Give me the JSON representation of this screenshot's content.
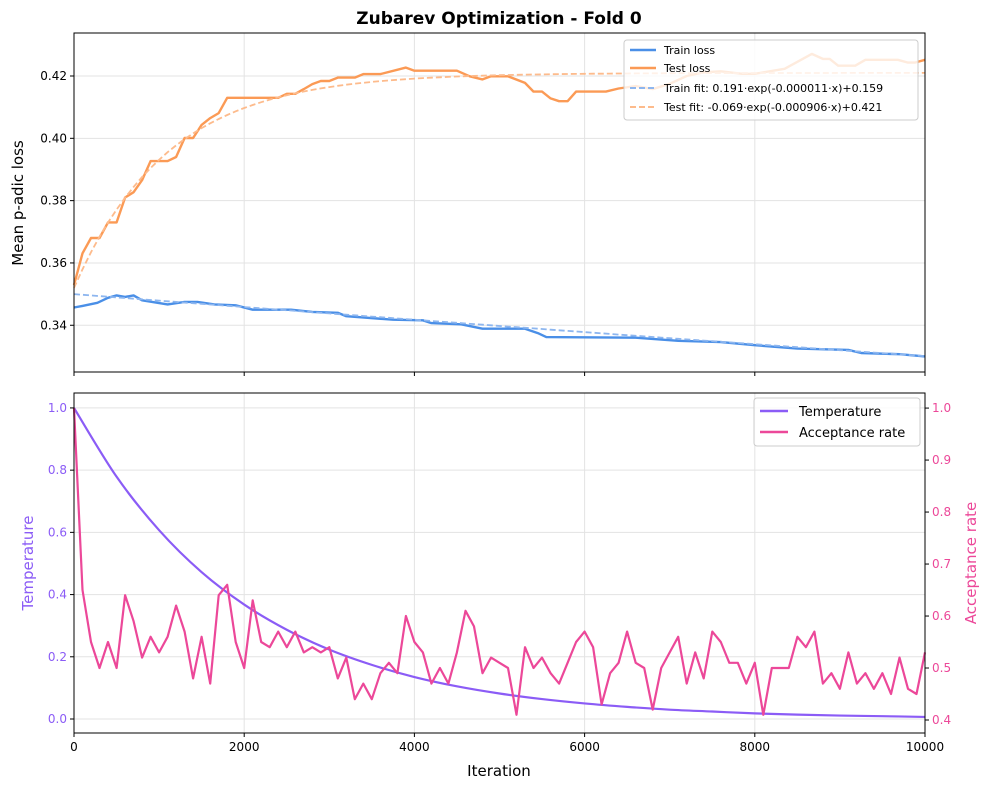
{
  "chart_data": [
    {
      "type": "line",
      "title": "Zubarev Optimization - Fold 0",
      "xlabel": "",
      "ylabel": "Mean p-adic loss",
      "xlim": [
        0,
        10000
      ],
      "ylim": [
        0.325,
        0.4338
      ],
      "xticks": [
        0,
        2000,
        4000,
        6000,
        8000,
        10000
      ],
      "yticks": [
        0.34,
        0.36,
        0.38,
        0.4,
        0.42
      ],
      "ytick_labels": [
        "0.34",
        "0.36",
        "0.38",
        "0.40",
        "0.42"
      ],
      "grid": true,
      "legend_position": "top-right",
      "series": [
        {
          "name": "Train loss",
          "color": "#4a8fe7",
          "style": "solid",
          "points": [
            [
              0,
              0.3457
            ],
            [
              100,
              0.3462
            ],
            [
              275,
              0.3472
            ],
            [
              400,
              0.3488
            ],
            [
              500,
              0.3496
            ],
            [
              600,
              0.3491
            ],
            [
              700,
              0.3496
            ],
            [
              800,
              0.348
            ],
            [
              1100,
              0.3467
            ],
            [
              1300,
              0.3475
            ],
            [
              1450,
              0.3475
            ],
            [
              1650,
              0.3467
            ],
            [
              1900,
              0.3464
            ],
            [
              2100,
              0.345
            ],
            [
              2550,
              0.345
            ],
            [
              2800,
              0.3443
            ],
            [
              3100,
              0.344
            ],
            [
              3200,
              0.3429
            ],
            [
              3750,
              0.3418
            ],
            [
              4100,
              0.3416
            ],
            [
              4200,
              0.3407
            ],
            [
              4550,
              0.3403
            ],
            [
              4800,
              0.3389
            ],
            [
              5300,
              0.3389
            ],
            [
              5450,
              0.3375
            ],
            [
              5550,
              0.3362
            ],
            [
              6600,
              0.336
            ],
            [
              7100,
              0.335
            ],
            [
              7600,
              0.3346
            ],
            [
              8000,
              0.3336
            ],
            [
              8500,
              0.3325
            ],
            [
              9100,
              0.3321
            ],
            [
              9250,
              0.3311
            ],
            [
              9700,
              0.3307
            ],
            [
              10000,
              0.33
            ]
          ]
        },
        {
          "name": "Test loss",
          "color": "#fb9a55",
          "style": "solid",
          "points": [
            [
              0,
              0.3529
            ],
            [
              100,
              0.3631
            ],
            [
              200,
              0.368
            ],
            [
              300,
              0.368
            ],
            [
              400,
              0.373
            ],
            [
              500,
              0.373
            ],
            [
              600,
              0.381
            ],
            [
              700,
              0.3827
            ],
            [
              800,
              0.3866
            ],
            [
              900,
              0.3927
            ],
            [
              1100,
              0.3927
            ],
            [
              1200,
              0.394
            ],
            [
              1300,
              0.4001
            ],
            [
              1400,
              0.4001
            ],
            [
              1500,
              0.4043
            ],
            [
              1600,
              0.4065
            ],
            [
              1700,
              0.4081
            ],
            [
              1800,
              0.413
            ],
            [
              2400,
              0.413
            ],
            [
              2500,
              0.4143
            ],
            [
              2600,
              0.4143
            ],
            [
              2700,
              0.4158
            ],
            [
              2800,
              0.4174
            ],
            [
              2900,
              0.4184
            ],
            [
              3000,
              0.4184
            ],
            [
              3100,
              0.4195
            ],
            [
              3300,
              0.4195
            ],
            [
              3400,
              0.4206
            ],
            [
              3600,
              0.4206
            ],
            [
              3900,
              0.4227
            ],
            [
              4000,
              0.4217
            ],
            [
              4500,
              0.4217
            ],
            [
              4650,
              0.4199
            ],
            [
              4800,
              0.4189
            ],
            [
              4900,
              0.4199
            ],
            [
              5100,
              0.4199
            ],
            [
              5300,
              0.4178
            ],
            [
              5400,
              0.415
            ],
            [
              5500,
              0.415
            ],
            [
              5600,
              0.4128
            ],
            [
              5700,
              0.4119
            ],
            [
              5800,
              0.4119
            ],
            [
              5900,
              0.415
            ],
            [
              6250,
              0.415
            ],
            [
              6400,
              0.416
            ],
            [
              6600,
              0.4168
            ],
            [
              6800,
              0.4158
            ],
            [
              7000,
              0.4175
            ],
            [
              7200,
              0.42
            ],
            [
              7400,
              0.4212
            ],
            [
              7600,
              0.4215
            ],
            [
              7850,
              0.4207
            ],
            [
              8000,
              0.4207
            ],
            [
              8350,
              0.4223
            ],
            [
              8670,
              0.4271
            ],
            [
              8800,
              0.4255
            ],
            [
              8880,
              0.4255
            ],
            [
              8980,
              0.4233
            ],
            [
              9180,
              0.4233
            ],
            [
              9300,
              0.4252
            ],
            [
              9680,
              0.4252
            ],
            [
              9800,
              0.4243
            ],
            [
              9880,
              0.4243
            ],
            [
              10000,
              0.4252
            ]
          ]
        },
        {
          "name": "Train fit: 0.191·exp(-0.000011·x)+0.159",
          "color": "#8db6ef",
          "style": "dashed",
          "fit": {
            "a": 0.191,
            "b": -1.1e-05,
            "c": 0.159
          }
        },
        {
          "name": "Test fit: -0.069·exp(-0.000906·x)+0.421",
          "color": "#fdbb8c",
          "style": "dashed",
          "fit": {
            "a": -0.069,
            "b": -0.000906,
            "c": 0.421
          }
        }
      ]
    },
    {
      "type": "line",
      "xlabel": "Iteration",
      "ylabel_left": "Temperature",
      "ylabel_right": "Acceptance rate",
      "xlim": [
        0,
        10000
      ],
      "ylim_left": [
        -0.045,
        1.048
      ],
      "ylim_right": [
        0.375,
        1.029
      ],
      "xticks": [
        0,
        2000,
        4000,
        6000,
        8000,
        10000
      ],
      "xtick_labels": [
        "0",
        "2000",
        "4000",
        "6000",
        "8000",
        "10000"
      ],
      "yticks_left": [
        0.0,
        0.2,
        0.4,
        0.6,
        0.8,
        1.0
      ],
      "ytick_labels_left": [
        "0.0",
        "0.2",
        "0.4",
        "0.6",
        "0.8",
        "1.0"
      ],
      "yticks_right": [
        0.4,
        0.5,
        0.6,
        0.7,
        0.8,
        0.9,
        1.0
      ],
      "ytick_labels_right": [
        "0.4",
        "0.5",
        "0.6",
        "0.7",
        "0.8",
        "0.9",
        "1.0"
      ],
      "grid": true,
      "legend_position": "top-right",
      "series": [
        {
          "name": "Temperature",
          "color": "#8b5cf6",
          "axis": "left",
          "x": [
            0,
            500,
            1000,
            1500,
            2000,
            2500,
            3000,
            3500,
            4000,
            4500,
            5000,
            5500,
            6000,
            6500,
            7000,
            7500,
            8000,
            8500,
            9000,
            9500,
            10000
          ],
          "values": [
            1.0,
            0.779,
            0.607,
            0.472,
            0.368,
            0.287,
            0.223,
            0.174,
            0.135,
            0.105,
            0.082,
            0.064,
            0.05,
            0.039,
            0.03,
            0.024,
            0.018,
            0.014,
            0.011,
            0.009,
            0.0067
          ]
        },
        {
          "name": "Acceptance rate",
          "color": "#ec4899",
          "axis": "right",
          "x_step": 100,
          "values": [
            1.0,
            0.65,
            0.55,
            0.5,
            0.55,
            0.5,
            0.64,
            0.59,
            0.52,
            0.56,
            0.53,
            0.56,
            0.62,
            0.57,
            0.48,
            0.56,
            0.47,
            0.64,
            0.66,
            0.55,
            0.5,
            0.63,
            0.55,
            0.54,
            0.57,
            0.54,
            0.57,
            0.53,
            0.54,
            0.53,
            0.54,
            0.48,
            0.52,
            0.44,
            0.47,
            0.44,
            0.49,
            0.51,
            0.49,
            0.6,
            0.55,
            0.53,
            0.47,
            0.5,
            0.47,
            0.53,
            0.61,
            0.58,
            0.49,
            0.52,
            0.51,
            0.5,
            0.41,
            0.54,
            0.5,
            0.52,
            0.49,
            0.47,
            0.51,
            0.55,
            0.57,
            0.54,
            0.43,
            0.49,
            0.51,
            0.57,
            0.51,
            0.5,
            0.42,
            0.5,
            0.53,
            0.56,
            0.47,
            0.53,
            0.48,
            0.57,
            0.55,
            0.51,
            0.51,
            0.47,
            0.51,
            0.41,
            0.5,
            0.5,
            0.5,
            0.56,
            0.54,
            0.57,
            0.47,
            0.49,
            0.46,
            0.53,
            0.47,
            0.49,
            0.46,
            0.49,
            0.45,
            0.52,
            0.46,
            0.45,
            0.53
          ]
        }
      ]
    }
  ]
}
